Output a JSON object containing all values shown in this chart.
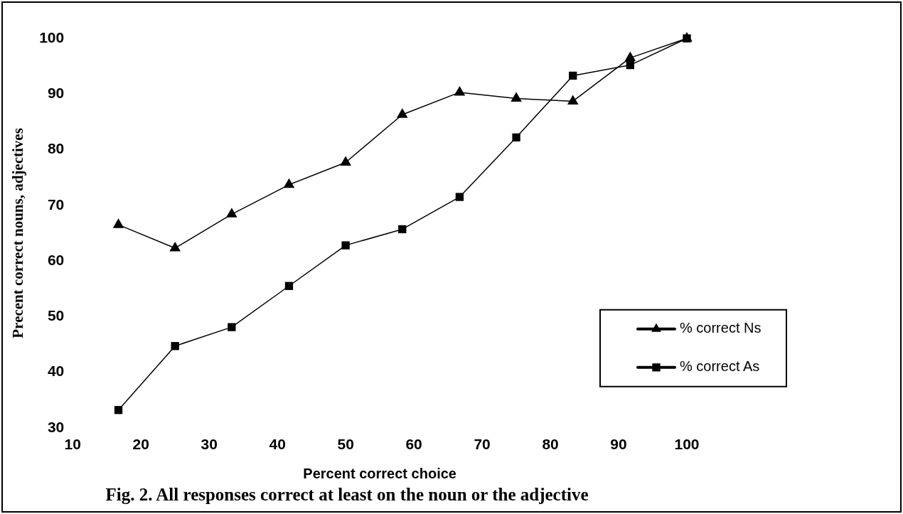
{
  "chart_data": {
    "type": "line",
    "title": "Fig. 2. All responses correct at least on the noun or the adjective",
    "xlabel": "Percent correct choice",
    "ylabel": "Precent correct nouns, adjectives",
    "x": [
      16.7,
      25,
      33.3,
      41.7,
      50,
      58.3,
      66.7,
      75,
      83.3,
      91.7,
      100
    ],
    "series": [
      {
        "name": "% correct Ns",
        "color": "#000000",
        "marker": "triangle",
        "values": [
          66.5,
          62.3,
          68.4,
          73.7,
          77.7,
          86.3,
          90.3,
          89.2,
          88.7,
          96.5,
          100
        ]
      },
      {
        "name": "% correct As",
        "color": "#000000",
        "marker": "square",
        "values": [
          33.2,
          44.7,
          48.1,
          55.5,
          62.8,
          65.7,
          71.5,
          82.2,
          93.3,
          95.2,
          100
        ]
      }
    ],
    "xlim": [
      10,
      100
    ],
    "xticks": [
      10,
      20,
      30,
      40,
      50,
      60,
      70,
      80,
      90,
      100
    ],
    "ylim": [
      30,
      100
    ],
    "yticks": [
      30,
      40,
      50,
      60,
      70,
      80,
      90,
      100
    ],
    "grid": false,
    "legend": "bottom right",
    "line_style": "solid"
  }
}
